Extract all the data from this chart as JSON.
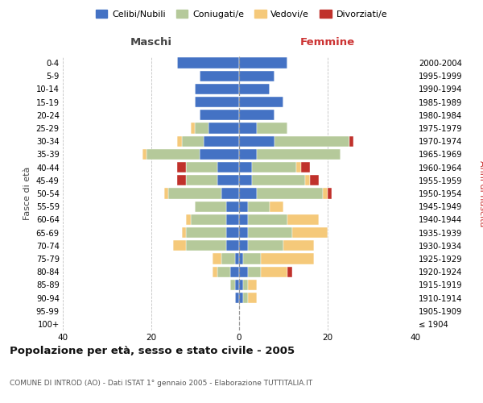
{
  "age_groups": [
    "100+",
    "95-99",
    "90-94",
    "85-89",
    "80-84",
    "75-79",
    "70-74",
    "65-69",
    "60-64",
    "55-59",
    "50-54",
    "45-49",
    "40-44",
    "35-39",
    "30-34",
    "25-29",
    "20-24",
    "15-19",
    "10-14",
    "5-9",
    "0-4"
  ],
  "birth_years": [
    "≤ 1904",
    "1905-1909",
    "1910-1914",
    "1915-1919",
    "1920-1924",
    "1925-1929",
    "1930-1934",
    "1935-1939",
    "1940-1944",
    "1945-1949",
    "1950-1954",
    "1955-1959",
    "1960-1964",
    "1965-1969",
    "1970-1974",
    "1975-1979",
    "1980-1984",
    "1985-1989",
    "1990-1994",
    "1995-1999",
    "2000-2004"
  ],
  "male_celibe": [
    0,
    0,
    1,
    1,
    2,
    1,
    3,
    3,
    3,
    3,
    4,
    5,
    5,
    9,
    8,
    7,
    9,
    10,
    10,
    9,
    14
  ],
  "male_coniugato": [
    0,
    0,
    0,
    1,
    3,
    3,
    9,
    9,
    8,
    7,
    12,
    7,
    7,
    12,
    5,
    3,
    0,
    0,
    0,
    0,
    0
  ],
  "male_vedovo": [
    0,
    0,
    0,
    0,
    1,
    2,
    3,
    1,
    1,
    0,
    1,
    0,
    0,
    1,
    1,
    1,
    0,
    0,
    0,
    0,
    0
  ],
  "male_divorziato": [
    0,
    0,
    0,
    0,
    0,
    0,
    0,
    0,
    0,
    0,
    0,
    2,
    2,
    0,
    0,
    0,
    0,
    0,
    0,
    0,
    0
  ],
  "female_celibe": [
    0,
    0,
    1,
    1,
    2,
    1,
    2,
    2,
    2,
    2,
    4,
    3,
    3,
    4,
    8,
    4,
    8,
    10,
    7,
    8,
    11
  ],
  "female_coniugato": [
    0,
    0,
    1,
    1,
    3,
    4,
    8,
    10,
    9,
    5,
    15,
    12,
    10,
    19,
    17,
    7,
    0,
    0,
    0,
    0,
    0
  ],
  "female_vedovo": [
    0,
    0,
    2,
    2,
    6,
    12,
    7,
    8,
    7,
    3,
    1,
    1,
    1,
    0,
    0,
    0,
    0,
    0,
    0,
    0,
    0
  ],
  "female_divorziato": [
    0,
    0,
    0,
    0,
    1,
    0,
    0,
    0,
    0,
    0,
    1,
    2,
    2,
    0,
    1,
    0,
    0,
    0,
    0,
    0,
    0
  ],
  "color_celibe": "#4472c4",
  "color_coniugato": "#b5c99a",
  "color_vedovo": "#f5c97a",
  "color_divorziato": "#c0312b",
  "title": "Popolazione per età, sesso e stato civile - 2005",
  "subtitle": "COMUNE DI INTROD (AO) - Dati ISTAT 1° gennaio 2005 - Elaborazione TUTTITALIA.IT",
  "xlabel_left": "Maschi",
  "xlabel_right": "Femmine",
  "ylabel_left": "Fasce di età",
  "ylabel_right": "Anni di nascita",
  "xlim": 40,
  "xticks": [
    -40,
    -20,
    0,
    20,
    40
  ]
}
